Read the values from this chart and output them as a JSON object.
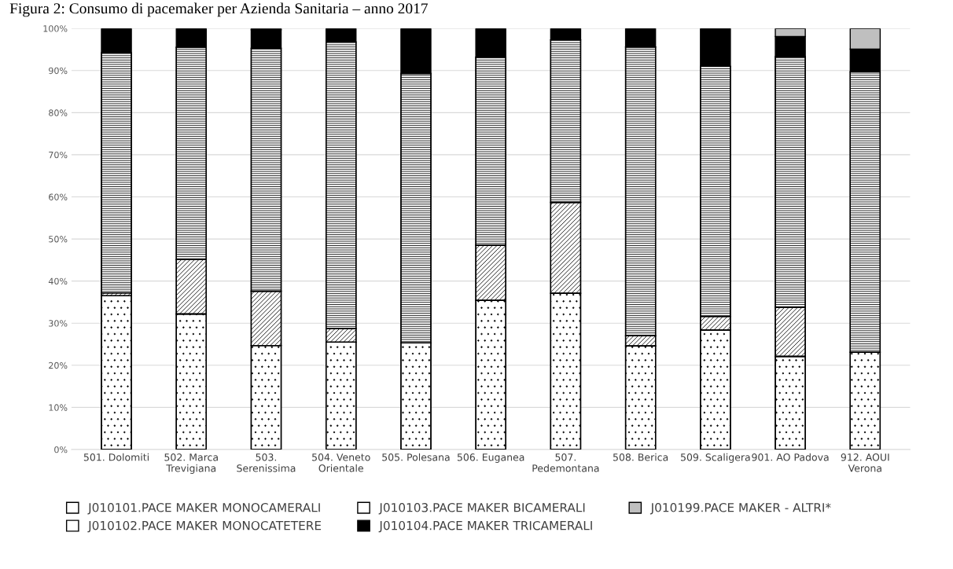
{
  "chart_data": {
    "type": "bar",
    "stacked": true,
    "title": "Figura 2: Consumo di pacemaker per Azienda Sanitaria – anno 2017",
    "categories": [
      "501. Dolomiti",
      "502. Marca\nTrevigiana",
      "503.\nSerenissima",
      "504. Veneto\nOrientale",
      "505. Polesana",
      "506. Euganea",
      "507.\nPedemontana",
      "508. Berica",
      "509. Scaligera",
      "901. AO Padova",
      "912. AOUI\nVerona"
    ],
    "series": [
      {
        "name": "J010101.PACE MAKER MONOCAMERALI",
        "color": "#ffffff",
        "values": [
          36.5,
          32.2,
          24.7,
          25.5,
          25.3,
          35.4,
          37.1,
          24.6,
          28.4,
          22.1,
          23.1
        ]
      },
      {
        "name": "J010102.PACE MAKER MONOCATETERE",
        "color": "#ffffff",
        "values": [
          0.7,
          12.9,
          12.9,
          3.2,
          0,
          13.1,
          21.6,
          2.4,
          3.2,
          11.7,
          0
        ]
      },
      {
        "name": "J010103.PACE MAKER BICAMERALI",
        "color": "#ffffff",
        "values": [
          57.0,
          50.4,
          57.7,
          68.1,
          64.0,
          44.7,
          38.6,
          68.6,
          59.4,
          59.5,
          66.6
        ]
      },
      {
        "name": "J010104.PACE MAKER TRICAMERALI",
        "color": "#000000",
        "values": [
          5.8,
          4.5,
          4.4,
          3.2,
          10.7,
          6.8,
          2.7,
          4.4,
          9.0,
          4.8,
          5.4
        ]
      },
      {
        "name": "J010199.PACE MAKER - ALTRI*",
        "color": "#bfbfbf",
        "values": [
          0,
          0,
          0.3,
          0,
          0,
          0,
          0,
          0,
          0,
          1.9,
          4.9
        ]
      }
    ],
    "ylim": [
      0,
      100
    ],
    "yticks": [
      {
        "value": 0,
        "label": "0%"
      },
      {
        "value": 10,
        "label": "10%"
      },
      {
        "value": 20,
        "label": "20%"
      },
      {
        "value": 30,
        "label": "30%"
      },
      {
        "value": 40,
        "label": "40%"
      },
      {
        "value": 50,
        "label": "50%"
      },
      {
        "value": 60,
        "label": "60%"
      },
      {
        "value": 70,
        "label": "70%"
      },
      {
        "value": 80,
        "label": "80%"
      },
      {
        "value": 90,
        "label": "90%"
      },
      {
        "value": 100,
        "label": "100%"
      }
    ],
    "grid": "y",
    "legend": "bottom"
  }
}
